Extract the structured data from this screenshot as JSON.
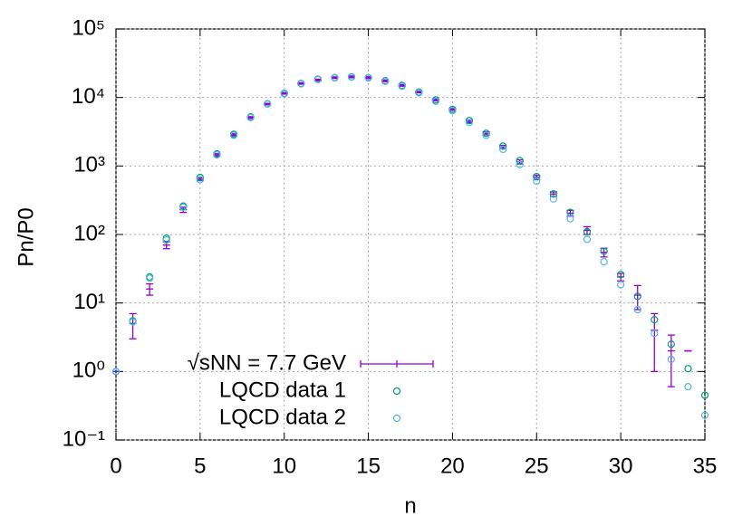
{
  "chart_data": {
    "type": "scatter",
    "xlabel": "n",
    "ylabel": "Pn/P0",
    "log_y": true,
    "grid": true,
    "legend": "lower left",
    "x": [
      0,
      1,
      2,
      3,
      4,
      5,
      6,
      7,
      8,
      9,
      10,
      11,
      12,
      13,
      14,
      15,
      16,
      17,
      18,
      19,
      20,
      21,
      22,
      23,
      24,
      25,
      26,
      27,
      28,
      29,
      30,
      31,
      32,
      33,
      34,
      35
    ],
    "xlim": [
      0,
      35
    ],
    "xticks": [
      0,
      5,
      10,
      15,
      20,
      25,
      30,
      35
    ],
    "ylim": [
      0.1,
      100000
    ],
    "yticks": [
      {
        "value": 0.1,
        "label": "10⁻¹"
      },
      {
        "value": 1,
        "label": "10⁰"
      },
      {
        "value": 10,
        "label": "10¹"
      },
      {
        "value": 100,
        "label": "10²"
      },
      {
        "value": 1000,
        "label": "10³"
      },
      {
        "value": 10000,
        "label": "10⁴"
      },
      {
        "value": 100000,
        "label": "10⁵"
      }
    ],
    "series": [
      {
        "name": "√sNN = 7.7 GeV",
        "color": "#9400d3",
        "style": "errorbar",
        "values": [
          1,
          5,
          16,
          70,
          230,
          640,
          1450,
          2850,
          5100,
          8000,
          11500,
          16000,
          18000,
          19500,
          20000,
          19500,
          17500,
          15000,
          12000,
          9200,
          6700,
          4500,
          3000,
          1900,
          1150,
          680,
          390,
          205,
          115,
          55,
          24,
          13,
          4,
          2,
          2,
          null
        ],
        "errors": [
          0,
          2,
          3,
          8,
          20,
          30,
          60,
          100,
          150,
          200,
          300,
          400,
          500,
          500,
          600,
          600,
          500,
          400,
          300,
          300,
          200,
          200,
          150,
          100,
          80,
          50,
          30,
          20,
          15,
          8,
          3,
          5,
          3,
          1.4,
          0,
          null
        ]
      },
      {
        "name": "LQCD data 1",
        "color": "#009e73",
        "style": "circle",
        "values": [
          1,
          5.5,
          24,
          88,
          260,
          680,
          1500,
          2900,
          5200,
          8100,
          11500,
          16000,
          18500,
          19500,
          20000,
          19500,
          17500,
          15000,
          12000,
          9200,
          6700,
          4600,
          3000,
          1950,
          1200,
          700,
          390,
          210,
          110,
          57,
          26,
          12.5,
          5.7,
          2.5,
          1.1,
          0.45
        ]
      },
      {
        "name": "LQCD data 2",
        "color": "#56b4e9",
        "style": "circle",
        "values": [
          1,
          5.3,
          23,
          83,
          250,
          630,
          1450,
          2800,
          5100,
          8000,
          11300,
          15800,
          18300,
          19300,
          19800,
          19300,
          17200,
          14600,
          11700,
          8800,
          6400,
          4300,
          2800,
          1750,
          1050,
          600,
          330,
          170,
          85,
          40,
          18.5,
          8,
          3.6,
          1.5,
          0.6,
          0.23
        ]
      }
    ]
  }
}
